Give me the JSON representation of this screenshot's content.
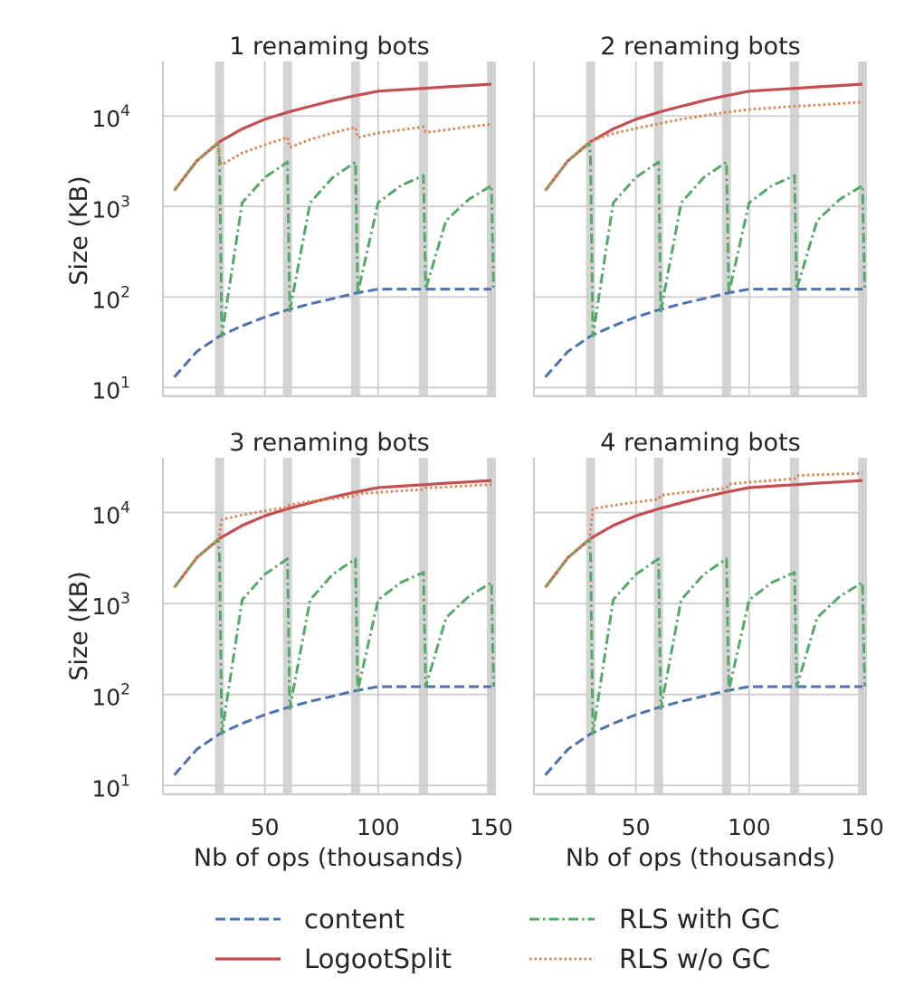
{
  "chart_data": {
    "type": "line",
    "yscale": "log",
    "ylim": [
      8,
      40000
    ],
    "xlim": [
      5,
      152
    ],
    "xticks": [
      50,
      100,
      150
    ],
    "xlabel": "Nb of ops (thousands)",
    "ylabel": "Size (KB)",
    "grid": true,
    "legend_placement": "bottom",
    "rename_regions": [
      [
        28,
        32
      ],
      [
        58,
        62
      ],
      [
        88,
        92
      ],
      [
        118,
        122
      ],
      [
        148,
        152
      ]
    ],
    "legend": [
      {
        "label": "content",
        "color": "#4c72b0",
        "style": "dashed"
      },
      {
        "label": "LogootSplit",
        "color": "#c44e52",
        "style": "solid"
      },
      {
        "label": "RLS with GC",
        "color": "#55a868",
        "style": "dashdot"
      },
      {
        "label": "RLS w/o GC",
        "color": "#dd8452",
        "style": "dotted"
      }
    ],
    "panels": [
      {
        "title": "1 renaming bots",
        "series": [
          {
            "name": "content",
            "x": [
              10,
              20,
              30,
              40,
              50,
              60,
              70,
              80,
              90,
              100,
              110,
              120,
              130,
              140,
              150
            ],
            "y": [
              13,
              25,
              37,
              48,
              60,
              72,
              84,
              96,
              110,
              122,
              122,
              122,
              122,
              122,
              122
            ]
          },
          {
            "name": "LogootSplit",
            "x": [
              10,
              20,
              30,
              40,
              50,
              60,
              70,
              80,
              90,
              100,
              110,
              120,
              130,
              140,
              150
            ],
            "y": [
              1500,
              3200,
              5200,
              7200,
              9200,
              11000,
              12800,
              14800,
              16800,
              18800,
              19500,
              20200,
              21000,
              21700,
              22500
            ]
          },
          {
            "name": "RLS with GC",
            "x": [
              10,
              20,
              29.5,
              30,
              31,
              40,
              50,
              60,
              61,
              70,
              80,
              90,
              91,
              100,
              110,
              120,
              121,
              130,
              140,
              150,
              151
            ],
            "y": [
              1500,
              3200,
              5000,
              3200,
              37,
              1100,
              2100,
              3100,
              70,
              1100,
              2100,
              3100,
              110,
              1100,
              1700,
              2200,
              122,
              700,
              1200,
              1700,
              122
            ]
          },
          {
            "name": "RLS w/o GC",
            "x": [
              10,
              20,
              29.5,
              30,
              31,
              40,
              50,
              60,
              61,
              70,
              80,
              90,
              91,
              100,
              110,
              120,
              121,
              130,
              140,
              150
            ],
            "y": [
              1500,
              3200,
              5000,
              3100,
              2900,
              3900,
              4800,
              5800,
              4500,
              5500,
              6500,
              7500,
              5800,
              6500,
              7000,
              7600,
              6600,
              7000,
              7600,
              8100
            ]
          }
        ]
      },
      {
        "title": "2 renaming bots",
        "series": [
          {
            "name": "content",
            "x": [
              10,
              20,
              30,
              40,
              50,
              60,
              70,
              80,
              90,
              100,
              110,
              120,
              130,
              140,
              150
            ],
            "y": [
              13,
              25,
              37,
              48,
              60,
              72,
              84,
              96,
              110,
              122,
              122,
              122,
              122,
              122,
              122
            ]
          },
          {
            "name": "LogootSplit",
            "x": [
              10,
              20,
              30,
              40,
              50,
              60,
              70,
              80,
              90,
              100,
              110,
              120,
              130,
              140,
              150
            ],
            "y": [
              1500,
              3200,
              5200,
              7200,
              9200,
              11000,
              12800,
              14800,
              16800,
              18800,
              19500,
              20200,
              21000,
              21700,
              22500
            ]
          },
          {
            "name": "RLS with GC",
            "x": [
              10,
              20,
              29.5,
              30,
              31,
              40,
              50,
              60,
              61,
              70,
              80,
              90,
              91,
              100,
              110,
              120,
              121,
              130,
              140,
              150,
              151
            ],
            "y": [
              1500,
              3200,
              5000,
              3200,
              37,
              1100,
              2100,
              3100,
              70,
              1100,
              2100,
              3100,
              110,
              1100,
              1700,
              2200,
              122,
              700,
              1200,
              1700,
              122
            ]
          },
          {
            "name": "RLS w/o GC",
            "x": [
              10,
              20,
              30,
              40,
              50,
              60,
              70,
              80,
              90,
              100,
              110,
              120,
              130,
              140,
              150
            ],
            "y": [
              1500,
              3200,
              5300,
              6400,
              7300,
              8200,
              9200,
              10100,
              11000,
              11800,
              12300,
              12800,
              13200,
              13700,
              14300
            ]
          }
        ]
      },
      {
        "title": "3 renaming bots",
        "series": [
          {
            "name": "content",
            "x": [
              10,
              20,
              30,
              40,
              50,
              60,
              70,
              80,
              90,
              100,
              110,
              120,
              130,
              140,
              150
            ],
            "y": [
              13,
              25,
              37,
              48,
              60,
              72,
              84,
              96,
              110,
              122,
              122,
              122,
              122,
              122,
              122
            ]
          },
          {
            "name": "LogootSplit",
            "x": [
              10,
              20,
              30,
              40,
              50,
              60,
              70,
              80,
              90,
              100,
              110,
              120,
              130,
              140,
              150
            ],
            "y": [
              1500,
              3200,
              5200,
              7200,
              9200,
              11000,
              12800,
              14800,
              16800,
              18800,
              19500,
              20200,
              21000,
              21700,
              22500
            ]
          },
          {
            "name": "RLS with GC",
            "x": [
              10,
              20,
              29.5,
              30,
              31,
              40,
              50,
              60,
              61,
              70,
              80,
              90,
              91,
              100,
              110,
              120,
              121,
              130,
              140,
              150,
              151
            ],
            "y": [
              1500,
              3200,
              5000,
              3200,
              37,
              1100,
              2100,
              3100,
              70,
              1100,
              2100,
              3100,
              110,
              1100,
              1700,
              2200,
              122,
              700,
              1200,
              1700,
              122
            ]
          },
          {
            "name": "RLS w/o GC",
            "x": [
              10,
              20,
              29.5,
              30,
              31,
              40,
              50,
              60,
              61,
              70,
              80,
              90,
              91,
              100,
              110,
              120,
              121,
              130,
              140,
              150
            ],
            "y": [
              1500,
              3200,
              5000,
              6000,
              8400,
              9400,
              10400,
              11400,
              12200,
              13200,
              14200,
              15200,
              16000,
              16700,
              17300,
              17900,
              18600,
              19100,
              19700,
              20300
            ]
          }
        ]
      },
      {
        "title": "4 renaming bots",
        "series": [
          {
            "name": "content",
            "x": [
              10,
              20,
              30,
              40,
              50,
              60,
              70,
              80,
              90,
              100,
              110,
              120,
              130,
              140,
              150
            ],
            "y": [
              13,
              25,
              37,
              48,
              60,
              72,
              84,
              96,
              110,
              122,
              122,
              122,
              122,
              122,
              122
            ]
          },
          {
            "name": "LogootSplit",
            "x": [
              10,
              20,
              30,
              40,
              50,
              60,
              70,
              80,
              90,
              100,
              110,
              120,
              130,
              140,
              150
            ],
            "y": [
              1500,
              3200,
              5200,
              7200,
              9200,
              11000,
              12800,
              14800,
              16800,
              18800,
              19500,
              20200,
              21000,
              21700,
              22500
            ]
          },
          {
            "name": "RLS with GC",
            "x": [
              10,
              20,
              29.5,
              30,
              31,
              40,
              50,
              60,
              61,
              70,
              80,
              90,
              91,
              100,
              110,
              120,
              121,
              130,
              140,
              150,
              151
            ],
            "y": [
              1500,
              3200,
              5000,
              3200,
              37,
              1100,
              2100,
              3100,
              70,
              1100,
              2100,
              3100,
              110,
              1100,
              1700,
              2200,
              122,
              700,
              1200,
              1700,
              122
            ]
          },
          {
            "name": "RLS w/o GC",
            "x": [
              10,
              20,
              29.5,
              30,
              31,
              40,
              50,
              60,
              61,
              70,
              80,
              90,
              91,
              100,
              110,
              120,
              121,
              130,
              140,
              150
            ],
            "y": [
              1500,
              3200,
              5000,
              6500,
              11000,
              12000,
              13000,
              14000,
              15500,
              16500,
              17500,
              18500,
              20500,
              21500,
              22500,
              23500,
              25500,
              26000,
              26500,
              27000
            ]
          }
        ]
      }
    ]
  }
}
